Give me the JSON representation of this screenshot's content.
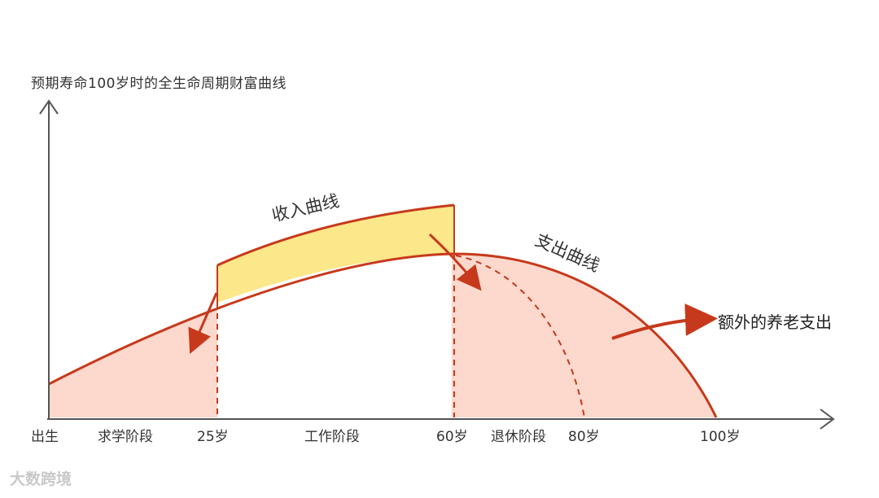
{
  "title": "预期寿命100岁时的全生命周期财富曲线",
  "curves": {
    "income_label": "收入曲线",
    "expense_label": "支出曲线"
  },
  "annotation": "额外的养老支出",
  "x_labels": {
    "birth": "出生",
    "study": "求学阶段",
    "age25": "25岁",
    "work": "工作阶段",
    "age60": "60岁",
    "retire": "退休阶段",
    "age80": "80岁",
    "age100": "100岁"
  },
  "watermark": "大数跨境",
  "colors": {
    "curve": "#c7391c",
    "income_fill": "#fce78a",
    "expense_fill": "#fcd9cc",
    "axis": "#555555"
  }
}
